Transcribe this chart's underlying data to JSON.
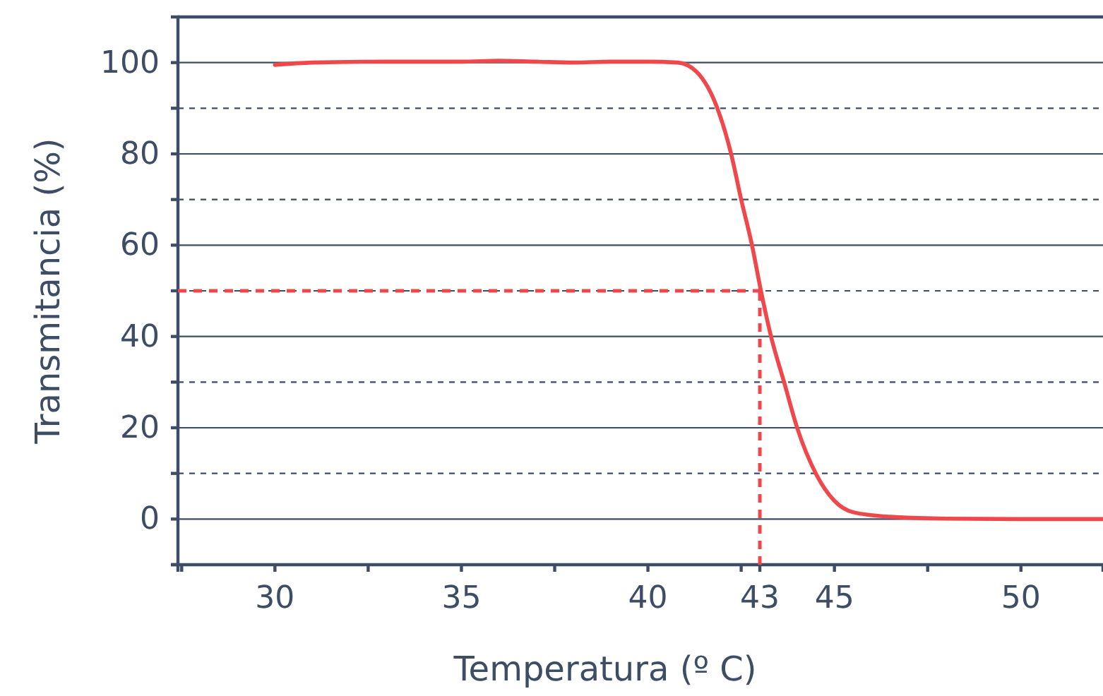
{
  "chart_data": {
    "type": "line",
    "xlabel": "Temperatura (º C)",
    "ylabel": "Transmitancia (%)",
    "xlim": [
      27.4,
      52.2
    ],
    "ylim": [
      -10,
      110
    ],
    "xticks": [
      {
        "value": 27.5,
        "label": null
      },
      30,
      {
        "value": 32.5,
        "label": null
      },
      35,
      {
        "value": 37.5,
        "label": null
      },
      40,
      {
        "value": 42.5,
        "label": null
      },
      43,
      45,
      {
        "value": 47.5,
        "label": null
      },
      50
    ],
    "yticks": [
      {
        "value": -10,
        "label": null
      },
      0,
      {
        "value": 10,
        "label": null
      },
      20,
      {
        "value": 30,
        "label": null
      },
      40,
      {
        "value": 50,
        "label": null
      },
      60,
      {
        "value": 70,
        "label": null
      },
      80,
      {
        "value": 90,
        "label": null
      },
      100
    ],
    "grid": "y",
    "line_style": "solid",
    "series": [
      {
        "color": "#f0474b",
        "x": [
          30,
          31,
          33,
          35,
          36,
          37,
          38,
          39,
          40,
          40.8,
          41.3,
          41.86,
          42.23,
          42.5,
          42.79,
          43.03,
          43.3,
          43.65,
          44.0,
          44.5,
          45,
          45.5,
          46.5,
          48,
          50,
          52.2
        ],
        "values": [
          99.5,
          100,
          100.2,
          100.2,
          100.4,
          100.2,
          100,
          100.2,
          100.2,
          100,
          98,
          90,
          80,
          70,
          60,
          50,
          40,
          30,
          20,
          10,
          4,
          1.5,
          0.5,
          0.1,
          0,
          0
        ]
      }
    ],
    "ref_lines": [
      {
        "axis": "y",
        "value": 50,
        "color": "#f0474b",
        "line_style": "dashed"
      },
      {
        "axis": "x",
        "value": 43,
        "color": "#f0474b",
        "line_style": "dashed"
      }
    ]
  }
}
